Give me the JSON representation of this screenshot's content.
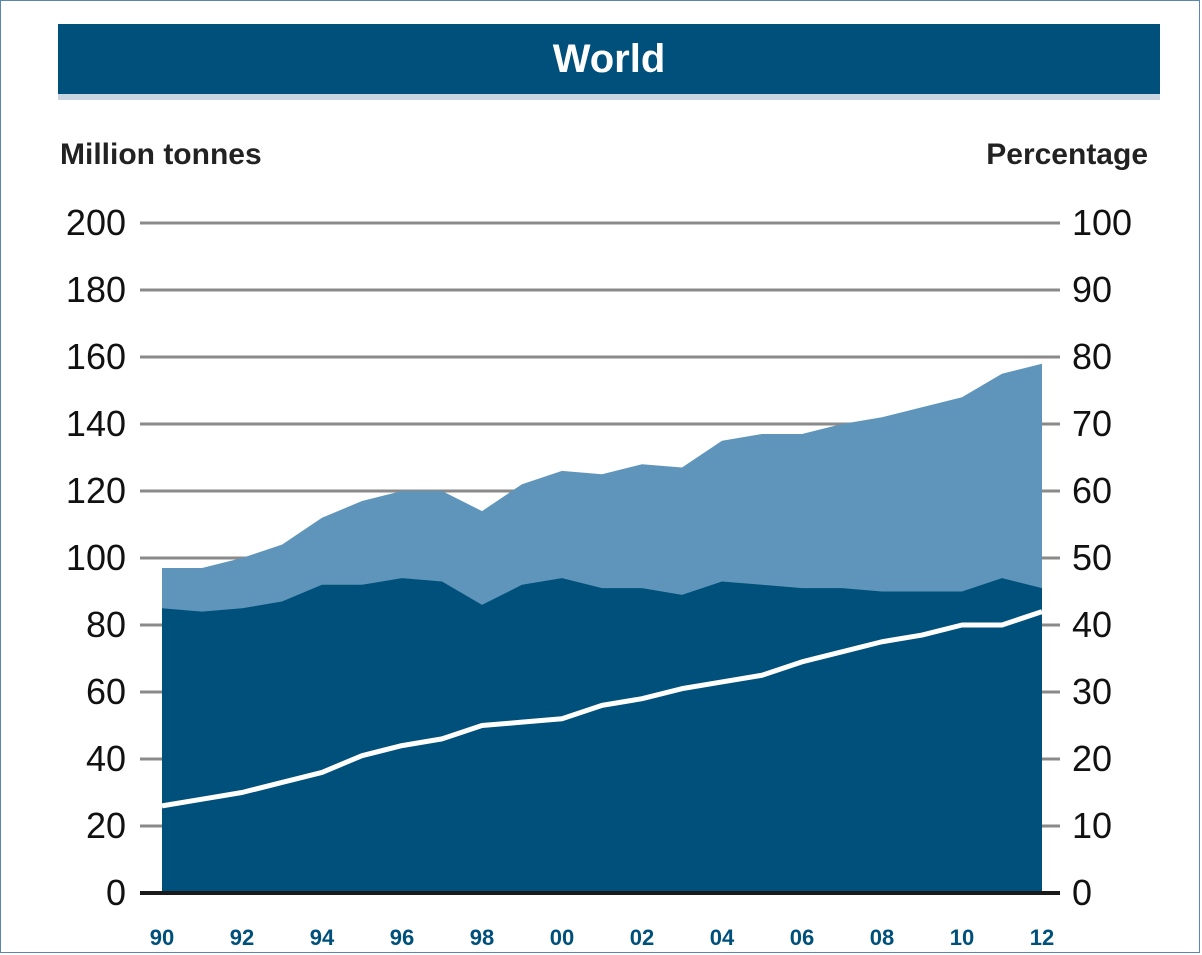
{
  "chart_data": {
    "type": "area",
    "title": "World",
    "ylabel": "Million tonnes",
    "y2label": "Percentage",
    "ylim": [
      0,
      200
    ],
    "y2lim": [
      0,
      100
    ],
    "yticks": [
      "0",
      "20",
      "40",
      "60",
      "80",
      "100",
      "120",
      "140",
      "160",
      "180",
      "200"
    ],
    "y2ticks": [
      "0",
      "10",
      "20",
      "30",
      "40",
      "50",
      "60",
      "70",
      "80",
      "90",
      "100"
    ],
    "x": [
      1990,
      1991,
      1992,
      1993,
      1994,
      1995,
      1996,
      1997,
      1998,
      1999,
      2000,
      2001,
      2002,
      2003,
      2004,
      2005,
      2006,
      2007,
      2008,
      2009,
      2010,
      2011,
      2012
    ],
    "xticks": [
      {
        "year": 1990,
        "label": "90"
      },
      {
        "year": 1992,
        "label": "92"
      },
      {
        "year": 1994,
        "label": "94"
      },
      {
        "year": 1996,
        "label": "96"
      },
      {
        "year": 1998,
        "label": "98"
      },
      {
        "year": 2000,
        "label": "00"
      },
      {
        "year": 2002,
        "label": "02"
      },
      {
        "year": 2004,
        "label": "04"
      },
      {
        "year": 2006,
        "label": "06"
      },
      {
        "year": 2008,
        "label": "08"
      },
      {
        "year": 2010,
        "label": "10"
      },
      {
        "year": 2012,
        "label": "12"
      }
    ],
    "series": [
      {
        "axis": "left",
        "color": "#00507c",
        "values": [
          85,
          84,
          85,
          87,
          92,
          92,
          94,
          93,
          86,
          92,
          94,
          91,
          91,
          89,
          93,
          92,
          91,
          91,
          90,
          90,
          90,
          94,
          91
        ]
      },
      {
        "axis": "left",
        "color": "#5f95ba",
        "values": [
          97,
          97,
          100,
          104,
          112,
          117,
          120,
          120,
          114,
          122,
          126,
          125,
          128,
          127,
          135,
          137,
          137,
          140,
          142,
          145,
          148,
          155,
          158
        ]
      },
      {
        "axis": "right",
        "color": "#ffffff",
        "values": [
          13,
          14,
          15,
          16.5,
          18,
          20.5,
          22,
          23,
          25,
          25.5,
          26,
          28,
          29,
          30.5,
          31.5,
          32.5,
          34.5,
          36,
          37.5,
          38.5,
          40,
          40,
          42
        ]
      }
    ],
    "grid": true
  }
}
